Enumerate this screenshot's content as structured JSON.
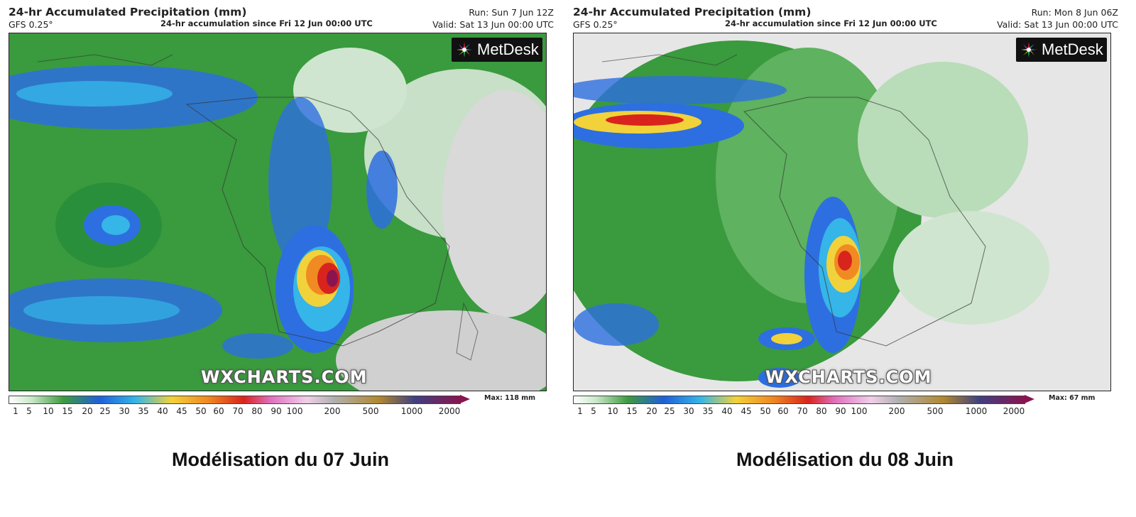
{
  "colors": {
    "bg_land_dry": "#e8e8e8",
    "green": "#3f9a3f",
    "light_green": "#8fce8f",
    "blue": "#2a4fd8",
    "cyan": "#35b5e8",
    "yellow": "#f2d23a",
    "orange": "#f08a22",
    "red": "#d8241c",
    "dark_red": "#8a1450",
    "magenta": "#d22ea0"
  },
  "colorbar": {
    "ticks": [
      "1",
      "5",
      "10",
      "15",
      "20",
      "25",
      "30",
      "35",
      "40",
      "45",
      "50",
      "60",
      "70",
      "80",
      "90",
      "100",
      "200",
      "500",
      "1000",
      "2000"
    ]
  },
  "panels": [
    {
      "title": "24-hr Accumulated Precipitation (mm)",
      "model": "GFS 0.25°",
      "accumulation": "24-hr accumulation since Fri 12 Jun 00:00 UTC",
      "run": "Run: Sun 7 Jun 12Z",
      "valid": "Valid: Sat 13 Jun 00:00 UTC",
      "logo": "MetDesk",
      "watermark": "WXCHARTS.COM",
      "max_label": "Max: 118 mm",
      "caption": "Modélisation du 07 Juin"
    },
    {
      "title": "24-hr Accumulated Precipitation (mm)",
      "model": "GFS 0.25°",
      "accumulation": "24-hr accumulation since Fri 12 Jun 00:00 UTC",
      "run": "Run: Mon 8 Jun 06Z",
      "valid": "Valid: Sat 13 Jun 00:00 UTC",
      "logo": "MetDesk",
      "watermark": "WXCHARTS.COM",
      "max_label": "Max: 67 mm",
      "caption": "Modélisation du 08 Juin"
    }
  ]
}
